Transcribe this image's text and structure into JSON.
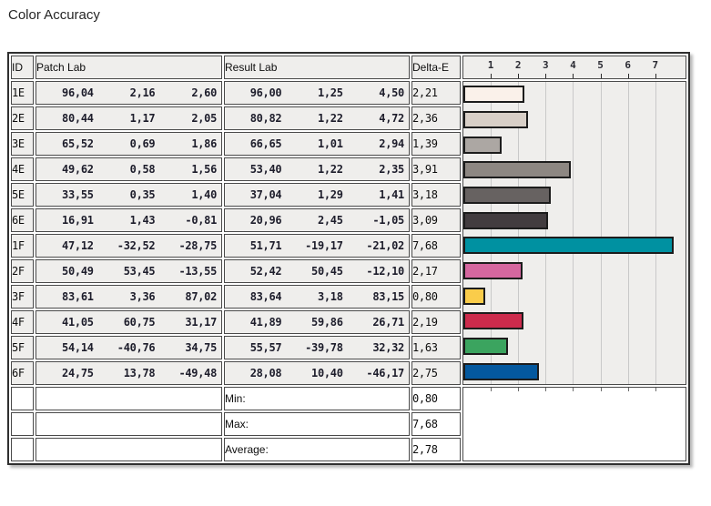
{
  "title": "Color Accuracy",
  "table": {
    "headers": {
      "id": "ID",
      "patch_lab": "Patch Lab",
      "result_lab": "Result Lab",
      "delta_e": "Delta-E"
    },
    "rows": [
      {
        "id": "1E",
        "patch": [
          "96,04",
          "2,16",
          "2,60"
        ],
        "result": [
          "96,00",
          "1,25",
          "4,50"
        ],
        "delta_e": "2,21"
      },
      {
        "id": "2E",
        "patch": [
          "80,44",
          "1,17",
          "2,05"
        ],
        "result": [
          "80,82",
          "1,22",
          "4,72"
        ],
        "delta_e": "2,36"
      },
      {
        "id": "3E",
        "patch": [
          "65,52",
          "0,69",
          "1,86"
        ],
        "result": [
          "66,65",
          "1,01",
          "2,94"
        ],
        "delta_e": "1,39"
      },
      {
        "id": "4E",
        "patch": [
          "49,62",
          "0,58",
          "1,56"
        ],
        "result": [
          "53,40",
          "1,22",
          "2,35"
        ],
        "delta_e": "3,91"
      },
      {
        "id": "5E",
        "patch": [
          "33,55",
          "0,35",
          "1,40"
        ],
        "result": [
          "37,04",
          "1,29",
          "1,41"
        ],
        "delta_e": "3,18"
      },
      {
        "id": "6E",
        "patch": [
          "16,91",
          "1,43",
          "-0,81"
        ],
        "result": [
          "20,96",
          "2,45",
          "-1,05"
        ],
        "delta_e": "3,09"
      },
      {
        "id": "1F",
        "patch": [
          "47,12",
          "-32,52",
          "-28,75"
        ],
        "result": [
          "51,71",
          "-19,17",
          "-21,02"
        ],
        "delta_e": "7,68"
      },
      {
        "id": "2F",
        "patch": [
          "50,49",
          "53,45",
          "-13,55"
        ],
        "result": [
          "52,42",
          "50,45",
          "-12,10"
        ],
        "delta_e": "2,17"
      },
      {
        "id": "3F",
        "patch": [
          "83,61",
          "3,36",
          "87,02"
        ],
        "result": [
          "83,64",
          "3,18",
          "83,15"
        ],
        "delta_e": "0,80"
      },
      {
        "id": "4F",
        "patch": [
          "41,05",
          "60,75",
          "31,17"
        ],
        "result": [
          "41,89",
          "59,86",
          "26,71"
        ],
        "delta_e": "2,19"
      },
      {
        "id": "5F",
        "patch": [
          "54,14",
          "-40,76",
          "34,75"
        ],
        "result": [
          "55,57",
          "-39,78",
          "32,32"
        ],
        "delta_e": "1,63"
      },
      {
        "id": "6F",
        "patch": [
          "24,75",
          "13,78",
          "-49,48"
        ],
        "result": [
          "28,08",
          "10,40",
          "-46,17"
        ],
        "delta_e": "2,75"
      }
    ],
    "summary": [
      {
        "label": "Min:",
        "value": "0,80"
      },
      {
        "label": "Max:",
        "value": "7,68"
      },
      {
        "label": "Average:",
        "value": "2,78"
      }
    ]
  },
  "chart_data": {
    "type": "bar",
    "orientation": "horizontal",
    "title": "Color Accuracy",
    "xlabel": "Delta-E",
    "categories": [
      "1E",
      "2E",
      "3E",
      "4E",
      "5E",
      "6E",
      "1F",
      "2F",
      "3F",
      "4F",
      "5F",
      "6F"
    ],
    "values": [
      2.21,
      2.36,
      1.39,
      3.91,
      3.18,
      3.09,
      7.68,
      2.17,
      0.8,
      2.19,
      1.63,
      2.75
    ],
    "bar_colors": [
      "#FAF1EA",
      "#D8CFC7",
      "#ACA7A3",
      "#8D8782",
      "#676261",
      "#423C3F",
      "#0091A1",
      "#D5679F",
      "#FACC4A",
      "#CC2B4C",
      "#3BA45F",
      "#04589E"
    ],
    "axis_ticks": [
      1,
      2,
      3,
      4,
      5,
      6,
      7
    ],
    "xlim": [
      0,
      8.1
    ],
    "grid": true,
    "summary_stats": {
      "min": 0.8,
      "max": 7.68,
      "average": 2.78
    }
  }
}
